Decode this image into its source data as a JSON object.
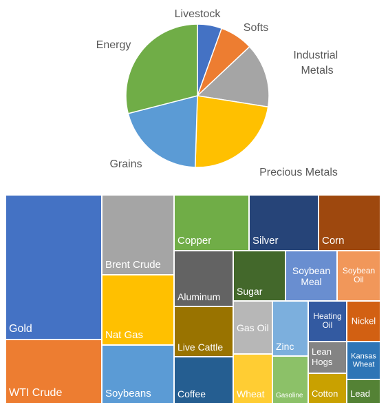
{
  "chart_data": [
    {
      "type": "pie",
      "slices": [
        {
          "label": "Livestock",
          "value": 5.5,
          "color": "#4472c4"
        },
        {
          "label": "Softs",
          "value": 7.5,
          "color": "#ed7d31"
        },
        {
          "label": "Industrial Metals",
          "value": 14.5,
          "color": "#a5a5a5"
        },
        {
          "label": "Precious Metals",
          "value": 23,
          "color": "#ffc000"
        },
        {
          "label": "Grains",
          "value": 20.5,
          "color": "#5b9bd5"
        },
        {
          "label": "Energy",
          "value": 29,
          "color": "#70ad47"
        }
      ]
    },
    {
      "type": "treemap",
      "tiles": [
        {
          "label": "Gold",
          "color": "#4472c4"
        },
        {
          "label": "WTI Crude",
          "color": "#ed7d31"
        },
        {
          "label": "Brent Crude",
          "color": "#a5a5a5"
        },
        {
          "label": "Nat Gas",
          "color": "#ffc000"
        },
        {
          "label": "Soybeans",
          "color": "#5b9bd5"
        },
        {
          "label": "Copper",
          "color": "#70ad47"
        },
        {
          "label": "Silver",
          "color": "#264478"
        },
        {
          "label": "Corn",
          "color": "#9e480e"
        },
        {
          "label": "Aluminum",
          "color": "#636363"
        },
        {
          "label": "Sugar",
          "color": "#43682b"
        },
        {
          "label": "Soybean Meal",
          "color": "#698ed0"
        },
        {
          "label": "Soybean Oil",
          "color": "#f1975a"
        },
        {
          "label": "Live Cattle",
          "color": "#997300"
        },
        {
          "label": "Gas Oil",
          "color": "#b7b7b7"
        },
        {
          "label": "Zinc",
          "color": "#7cafdd"
        },
        {
          "label": "Heating Oil",
          "color": "#335aa1"
        },
        {
          "label": "Nickel",
          "color": "#d26012"
        },
        {
          "label": "Coffee",
          "color": "#255e91"
        },
        {
          "label": "Wheat",
          "color": "#ffcd33"
        },
        {
          "label": "Gasoline",
          "color": "#8cc168"
        },
        {
          "label": "Lean Hogs",
          "color": "#848484"
        },
        {
          "label": "Kansas Wheat",
          "color": "#2e75b6"
        },
        {
          "label": "Cotton",
          "color": "#c9a100"
        },
        {
          "label": "Lead",
          "color": "#548235"
        }
      ]
    }
  ]
}
